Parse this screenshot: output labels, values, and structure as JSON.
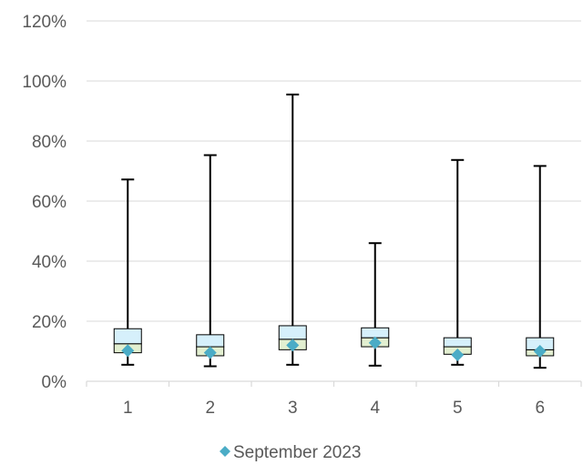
{
  "chart_data": {
    "type": "boxplot",
    "categories": [
      "1",
      "2",
      "3",
      "4",
      "5",
      "6"
    ],
    "ylim": [
      0,
      1.2
    ],
    "y_ticks": [
      0,
      0.2,
      0.4,
      0.6,
      0.8,
      1.0,
      1.2
    ],
    "y_tick_labels": [
      "0%",
      "20%",
      "40%",
      "60%",
      "80%",
      "100%",
      "120%"
    ],
    "grid": "horizontal",
    "legend_position": "bottom",
    "boxes": [
      {
        "category": "1",
        "min": 0.055,
        "q1": 0.095,
        "median": 0.125,
        "q3": 0.175,
        "max": 0.672
      },
      {
        "category": "2",
        "min": 0.05,
        "q1": 0.085,
        "median": 0.115,
        "q3": 0.155,
        "max": 0.753
      },
      {
        "category": "3",
        "min": 0.055,
        "q1": 0.105,
        "median": 0.14,
        "q3": 0.185,
        "max": 0.955
      },
      {
        "category": "4",
        "min": 0.052,
        "q1": 0.115,
        "median": 0.145,
        "q3": 0.178,
        "max": 0.46
      },
      {
        "category": "5",
        "min": 0.055,
        "q1": 0.09,
        "median": 0.115,
        "q3": 0.145,
        "max": 0.737
      },
      {
        "category": "6",
        "min": 0.045,
        "q1": 0.085,
        "median": 0.105,
        "q3": 0.145,
        "max": 0.717
      }
    ],
    "box_colors": {
      "upper": "#d6f0fb",
      "lower": "#e2efd0",
      "outline": "#000000"
    },
    "series": [
      {
        "name": "September 2023",
        "marker": "diamond",
        "color": "#4bacc6",
        "values": [
          0.102,
          0.095,
          0.12,
          0.128,
          0.088,
          0.1
        ]
      }
    ],
    "axis_color": "#d9d9d9",
    "gridline_color": "#d9d9d9"
  }
}
